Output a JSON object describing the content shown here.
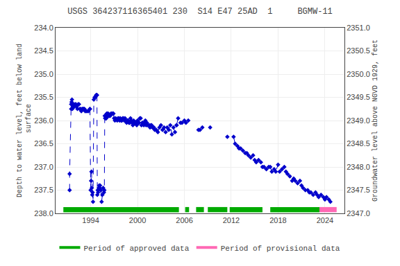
{
  "chart_data": {
    "type": "scatter",
    "title": "USGS 364237116365401 230  S14 E47 25AD  1     BGMW-11",
    "ylabel": "Depth to water level, feet below land\n surface",
    "y2label": "Groundwater level above NGVD 1929, feet",
    "xlim": [
      1989.5,
      2026.5
    ],
    "xticks": [
      1994,
      2000,
      2006,
      2012,
      2018,
      2024
    ],
    "ylim": [
      238.0,
      234.0
    ],
    "yticks": [
      {
        "value": 234.0,
        "label": "234.0"
      },
      {
        "value": 234.5,
        "label": "234.5"
      },
      {
        "value": 235.0,
        "label": "235.0"
      },
      {
        "value": 235.5,
        "label": "235.5"
      },
      {
        "value": 236.0,
        "label": "236.0"
      },
      {
        "value": 236.5,
        "label": "236.5"
      },
      {
        "value": 237.0,
        "label": "237.0"
      },
      {
        "value": 237.5,
        "label": "237.5"
      },
      {
        "value": 238.0,
        "label": "238.0"
      }
    ],
    "y2lim": [
      2347.0,
      2351.0
    ],
    "y2ticks": [
      {
        "value": 2347.0,
        "label": "2347.0"
      },
      {
        "value": 2347.5,
        "label": "2347.5"
      },
      {
        "value": 2348.0,
        "label": "2348.0"
      },
      {
        "value": 2348.5,
        "label": "2348.5"
      },
      {
        "value": 2349.0,
        "label": "2349.0"
      },
      {
        "value": 2349.5,
        "label": "2349.5"
      },
      {
        "value": 2350.0,
        "label": "2350.0"
      },
      {
        "value": 2350.5,
        "label": "2350.5"
      },
      {
        "value": 2351.0,
        "label": "2351.0"
      }
    ],
    "grid": true,
    "legend": "bottom",
    "series": [
      {
        "x": [
          1991.3,
          1991.3,
          1991.5,
          1991.5,
          1991.55,
          1991.6,
          1991.65,
          1991.7,
          1991.8,
          1991.9,
          1992.0,
          1992.1,
          1992.2,
          1992.3,
          1992.4,
          1992.5,
          1992.6,
          1992.7,
          1992.8,
          1992.9,
          1993.0,
          1993.1,
          1993.2,
          1993.3,
          1993.5,
          1993.7,
          1993.9
        ],
        "values": [
          237.5,
          237.15,
          235.65,
          235.75,
          235.6,
          235.55,
          235.75,
          235.7,
          235.65,
          235.7,
          235.65,
          235.65,
          235.7,
          235.75,
          235.65,
          235.65,
          235.75,
          235.75,
          235.8,
          235.75,
          235.75,
          235.75,
          235.75,
          235.8,
          235.8,
          235.8,
          235.75
        ],
        "color": "#0000cc",
        "marker": "diamond",
        "line_style": "dashed"
      },
      {
        "x": [
          1993.9,
          1994.0,
          1994.05,
          1994.1,
          1994.15,
          1994.2,
          1994.25,
          1994.3,
          1994.4,
          1994.5,
          1994.6,
          1994.7,
          1994.75,
          1994.8
        ],
        "values": [
          235.75,
          237.5,
          237.3,
          237.1,
          237.45,
          237.6,
          237.55,
          237.75,
          235.55,
          235.5,
          235.5,
          235.45,
          235.45,
          235.45
        ],
        "color": "#0000cc",
        "marker": "diamond",
        "line_style": "dashed"
      },
      {
        "x": [
          1994.8,
          1994.85,
          1994.9,
          1994.95,
          1995.0,
          1995.05,
          1995.1,
          1995.15,
          1995.2,
          1995.3
        ],
        "values": [
          235.45,
          237.6,
          237.5,
          237.55,
          237.5,
          237.45,
          237.4,
          237.45,
          237.4,
          237.5
        ],
        "color": "#0000cc",
        "marker": "diamond",
        "line_style": "dashed"
      },
      {
        "x": [
          1995.3,
          1995.4,
          1995.5,
          1995.6,
          1995.7,
          1995.75,
          1995.8,
          1995.85,
          1995.9,
          1995.95,
          1996.0,
          1996.05,
          1996.1,
          1996.15,
          1996.2,
          1996.25,
          1996.3,
          1996.4,
          1996.5,
          1996.6,
          1996.7,
          1996.8,
          1996.9
        ],
        "values": [
          237.5,
          237.75,
          237.6,
          237.45,
          237.55,
          237.5,
          235.9,
          235.95,
          235.9,
          235.95,
          235.95,
          235.85,
          235.9,
          235.85,
          235.9,
          235.85,
          235.9,
          235.9,
          235.9,
          235.85,
          235.85,
          235.85,
          235.85
        ],
        "color": "#0000cc",
        "marker": "diamond",
        "line_style": "dashed"
      },
      {
        "x": [
          1996.9,
          1997.0,
          1997.1,
          1997.2,
          1997.4,
          1997.5,
          1997.6,
          1997.7,
          1997.8,
          1997.9,
          1998.0,
          1998.1,
          1998.2,
          1998.3,
          1998.4,
          1998.5,
          1998.6,
          1998.7,
          1998.8,
          1998.9,
          1999.0,
          1999.1,
          1999.2,
          1999.3,
          1999.4,
          1999.5,
          1999.6,
          1999.7,
          1999.8,
          1999.9,
          2000.0,
          2000.1,
          2000.2,
          2000.3,
          2000.4,
          2000.5,
          2000.6,
          2000.7,
          2000.8,
          2000.9,
          2001.0,
          2001.1,
          2001.2,
          2001.3,
          2001.5,
          2001.6,
          2001.7,
          2001.8,
          2001.9,
          2002.0,
          2002.1,
          2002.2,
          2002.4,
          2002.6,
          2002.8,
          2003.0,
          2003.2,
          2003.4,
          2003.6,
          2003.8,
          2004.0,
          2004.2,
          2004.4,
          2004.6,
          2004.8,
          2005.0
        ],
        "values": [
          235.85,
          235.95,
          236.0,
          235.95,
          236.0,
          235.95,
          235.95,
          236.0,
          235.95,
          236.0,
          236.0,
          235.95,
          235.95,
          236.0,
          235.95,
          236.0,
          236.05,
          236.0,
          236.0,
          236.05,
          236.05,
          235.95,
          236.0,
          236.05,
          236.1,
          236.0,
          236.05,
          236.05,
          236.05,
          236.1,
          236.0,
          236.05,
          236.05,
          235.95,
          235.95,
          236.1,
          236.05,
          236.05,
          236.1,
          236.05,
          236.0,
          236.1,
          236.05,
          236.1,
          236.1,
          236.15,
          236.1,
          236.1,
          236.15,
          236.15,
          236.15,
          236.2,
          236.2,
          236.25,
          236.15,
          236.1,
          236.2,
          236.15,
          236.25,
          236.15,
          236.2,
          236.1,
          236.3,
          236.15,
          236.25,
          236.1
        ],
        "color": "#0000cc",
        "marker": "diamond",
        "line_style": "dashed"
      },
      {
        "x": [
          2005.0,
          2005.2,
          2005.5,
          2005.7,
          2006.0,
          2006.2,
          2006.5
        ],
        "values": [
          236.1,
          235.95,
          236.05,
          236.05,
          236.0,
          236.05,
          236.0
        ],
        "color": "#0000cc",
        "marker": "diamond",
        "line_style": "dashed"
      },
      {
        "x": [
          2007.8,
          2008.0,
          2008.3
        ],
        "values": [
          236.2,
          236.2,
          236.15
        ],
        "color": "#0000cc",
        "marker": "diamond",
        "line_style": "none"
      },
      {
        "x": [
          2009.3
        ],
        "values": [
          236.15
        ],
        "color": "#0000cc",
        "marker": "diamond",
        "line_style": "none"
      },
      {
        "x": [
          2011.5
        ],
        "values": [
          236.35
        ],
        "color": "#0000cc",
        "marker": "diamond",
        "line_style": "none"
      },
      {
        "x": [
          2012.3,
          2012.5,
          2012.8,
          2013.0,
          2013.2,
          2013.5,
          2013.8,
          2014.0,
          2014.2,
          2014.5,
          2014.8,
          2015.0,
          2015.2,
          2015.5,
          2015.8,
          2016.0,
          2016.2,
          2016.5,
          2016.8,
          2017.0,
          2017.2,
          2017.5,
          2017.7,
          2018.0,
          2018.2,
          2018.5,
          2018.8,
          2019.0,
          2019.2,
          2019.5,
          2019.8,
          2020.0,
          2020.2,
          2020.5,
          2020.8,
          2021.0,
          2021.2,
          2021.5,
          2021.8,
          2022.0,
          2022.2,
          2022.5,
          2022.8,
          2023.0,
          2023.2,
          2023.5,
          2023.8,
          2024.0,
          2024.2,
          2024.5,
          2024.7
        ],
        "values": [
          236.35,
          236.5,
          236.55,
          236.6,
          236.6,
          236.65,
          236.7,
          236.7,
          236.75,
          236.8,
          236.75,
          236.85,
          236.9,
          236.85,
          236.9,
          237.0,
          237.0,
          237.05,
          237.0,
          237.0,
          237.1,
          237.05,
          237.1,
          236.95,
          237.1,
          237.05,
          237.0,
          237.1,
          237.15,
          237.2,
          237.3,
          237.25,
          237.3,
          237.35,
          237.3,
          237.4,
          237.45,
          237.5,
          237.5,
          237.55,
          237.55,
          237.6,
          237.55,
          237.6,
          237.65,
          237.6,
          237.65,
          237.7,
          237.65,
          237.7,
          237.75
        ],
        "color": "#0000cc",
        "marker": "diamond",
        "line_style": "dashed"
      },
      {
        "name": "Period of approved data",
        "type": "period",
        "color": "#00aa00",
        "periods": [
          [
            1990.5,
            2005.3
          ],
          [
            2006.1,
            2006.6
          ],
          [
            2007.5,
            2008.5
          ],
          [
            2009.0,
            2011.5
          ],
          [
            2011.8,
            2016.0
          ],
          [
            2017.0,
            2023.3
          ]
        ]
      },
      {
        "name": "Period of provisional data",
        "type": "period",
        "color": "#ff69b4",
        "periods": [
          [
            2023.3,
            2025.5
          ]
        ]
      }
    ]
  }
}
